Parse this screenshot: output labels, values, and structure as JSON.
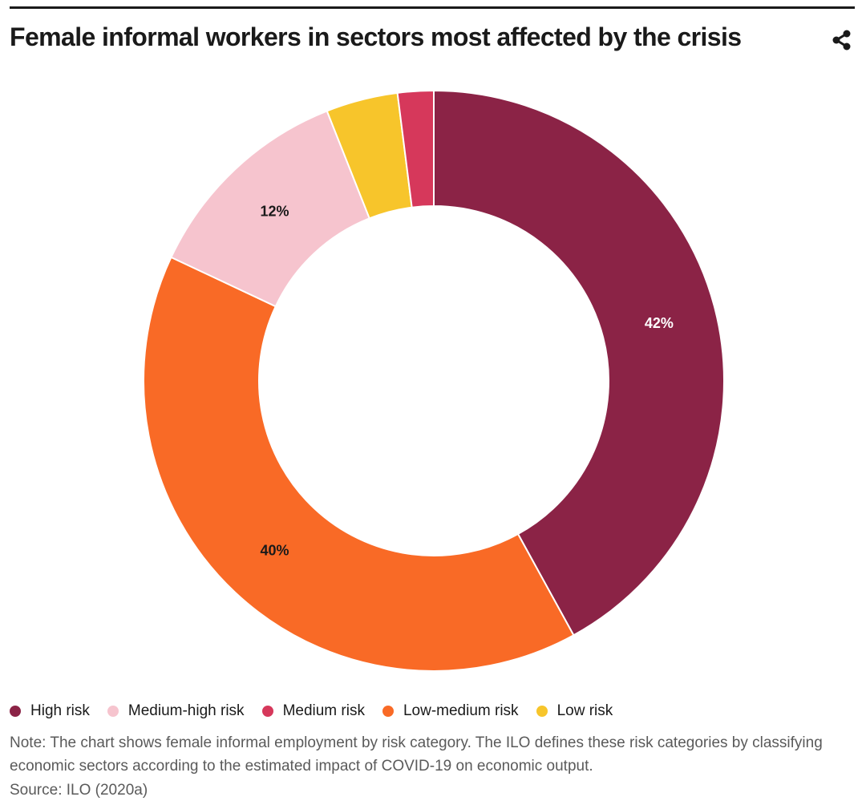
{
  "header": {
    "title": "Female informal workers in sectors most affected by the crisis",
    "share_icon": "share-icon"
  },
  "chart_data": {
    "type": "pie",
    "variant": "donut",
    "title": "Female informal workers in sectors most affected by the crisis",
    "unit": "%",
    "slices": [
      {
        "name": "High risk",
        "value": 42,
        "label": "42%",
        "color": "#8b2346",
        "label_color": "#ffffff"
      },
      {
        "name": "Low-medium risk",
        "value": 40,
        "label": "40%",
        "color": "#f96a26",
        "label_color": "#1a1a1a"
      },
      {
        "name": "Medium-high risk",
        "value": 12,
        "label": "12%",
        "color": "#f6c4ce",
        "label_color": "#1a1a1a"
      },
      {
        "name": "Low risk",
        "value": 4,
        "label": "",
        "color": "#f7c52b",
        "label_color": "#1a1a1a"
      },
      {
        "name": "Medium risk",
        "value": 2,
        "label": "",
        "color": "#d6385b",
        "label_color": "#ffffff"
      }
    ],
    "legend_position": "bottom"
  },
  "legend": {
    "items": [
      {
        "label": "High risk",
        "color": "#8b2346"
      },
      {
        "label": "Medium-high risk",
        "color": "#f6c4ce"
      },
      {
        "label": "Medium risk",
        "color": "#d6385b"
      },
      {
        "label": "Low-medium risk",
        "color": "#f96a26"
      },
      {
        "label": "Low risk",
        "color": "#f7c52b"
      }
    ]
  },
  "footer": {
    "note": "Note: The chart shows female informal employment by risk category. The ILO defines these risk categories by classifying economic sectors according to the estimated impact of COVID-19 on economic output.",
    "source": "Source: ILO (2020a)"
  }
}
